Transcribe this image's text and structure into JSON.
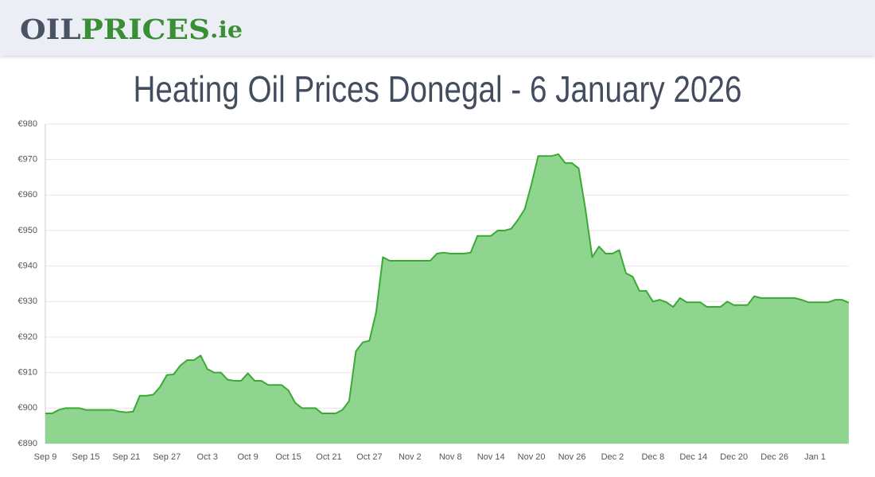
{
  "header": {
    "logo": {
      "part1": "OIL",
      "part2": "PRICES",
      "part3": ".ie"
    }
  },
  "chart_data": {
    "type": "area",
    "title": "Heating Oil Prices Donegal - 6 January 2026",
    "categories": [
      "Sep 9",
      null,
      null,
      null,
      null,
      null,
      "Sep 15",
      null,
      null,
      null,
      null,
      null,
      "Sep 21",
      null,
      null,
      null,
      null,
      null,
      "Sep 27",
      null,
      null,
      null,
      null,
      null,
      "Oct 3",
      null,
      null,
      null,
      null,
      null,
      "Oct 9",
      null,
      null,
      null,
      null,
      null,
      "Oct 15",
      null,
      null,
      null,
      null,
      null,
      "Oct 21",
      null,
      null,
      null,
      null,
      null,
      "Oct 27",
      null,
      null,
      null,
      null,
      null,
      "Nov 2",
      null,
      null,
      null,
      null,
      null,
      "Nov 8",
      null,
      null,
      null,
      null,
      null,
      "Nov 14",
      null,
      null,
      null,
      null,
      null,
      "Nov 20",
      null,
      null,
      null,
      null,
      null,
      "Nov 26",
      null,
      null,
      null,
      null,
      null,
      "Dec 2",
      null,
      null,
      null,
      null,
      null,
      "Dec 8",
      null,
      null,
      null,
      null,
      null,
      "Dec 14",
      null,
      null,
      null,
      null,
      null,
      "Dec 20",
      null,
      null,
      null,
      null,
      null,
      "Dec 26",
      null,
      null,
      null,
      null,
      null,
      "Jan 1",
      null,
      null,
      null,
      null,
      null
    ],
    "values": [
      898.5,
      898.5,
      899.5,
      900,
      900,
      900,
      899.5,
      899.5,
      899.5,
      899.5,
      899.5,
      899,
      898.8,
      899,
      903.5,
      903.5,
      903.8,
      906,
      909.3,
      909.5,
      912,
      913.5,
      913.5,
      914.8,
      911,
      910,
      910,
      908,
      907.7,
      907.7,
      909.8,
      907.7,
      907.7,
      906.5,
      906.5,
      906.5,
      905,
      901.5,
      900,
      900,
      900,
      898.5,
      898.5,
      898.5,
      899.5,
      902,
      916,
      918.5,
      919,
      927,
      942.5,
      941.5,
      941.5,
      941.5,
      941.5,
      941.5,
      941.5,
      941.5,
      943.5,
      943.8,
      943.5,
      943.5,
      943.5,
      943.8,
      948.5,
      948.5,
      948.5,
      950,
      950,
      950.5,
      953,
      956,
      963,
      971,
      971,
      971,
      971.5,
      969,
      969,
      967.5,
      956,
      942.5,
      945.5,
      943.5,
      943.5,
      944.5,
      938,
      937,
      933,
      933,
      930,
      930.5,
      929.8,
      928.5,
      931,
      929.8,
      929.8,
      929.8,
      928.5,
      928.5,
      928.5,
      930,
      929,
      929,
      929,
      931.5,
      931,
      931,
      931,
      931,
      931,
      931,
      930.5,
      929.8,
      929.8,
      929.8,
      929.8,
      930.5,
      930.5,
      929.7
    ],
    "color": "#3aaa35",
    "fill": "#90d58f",
    "ylim": [
      890,
      980
    ],
    "yticks": [
      {
        "value": 890,
        "label": "€890"
      },
      {
        "value": 900,
        "label": "€900"
      },
      {
        "value": 910,
        "label": "€910"
      },
      {
        "value": 920,
        "label": "€920"
      },
      {
        "value": 930,
        "label": "€930"
      },
      {
        "value": 940,
        "label": "€940"
      },
      {
        "value": 950,
        "label": "€950"
      },
      {
        "value": 960,
        "label": "€960"
      },
      {
        "value": 970,
        "label": "€970"
      },
      {
        "value": 980,
        "label": "€980"
      }
    ],
    "grid": true
  }
}
